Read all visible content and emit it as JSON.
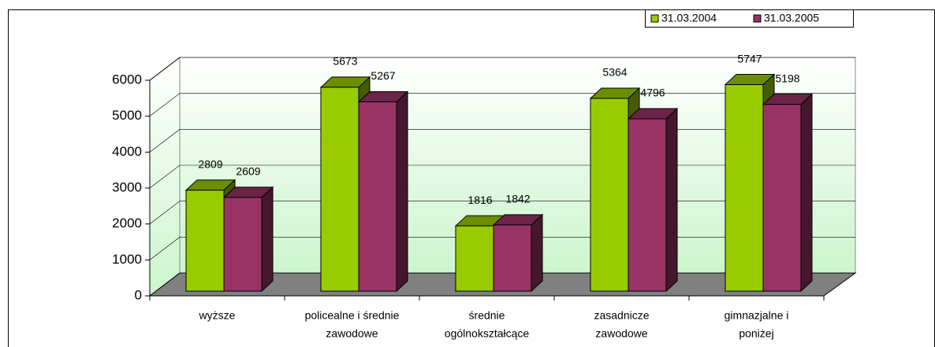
{
  "chart_data": {
    "type": "bar3d",
    "categories": [
      [
        "wyższe"
      ],
      [
        "policealne i średnie",
        "zawodowe"
      ],
      [
        "średnie",
        "ogólnokształcące"
      ],
      [
        "zasadnicze",
        "zawodowe"
      ],
      [
        "gimnazjalne i",
        "poniżej"
      ]
    ],
    "series": [
      {
        "name": "31.03.2004",
        "color": "#99cc00",
        "values": [
          2809,
          5673,
          1816,
          5364,
          5747
        ]
      },
      {
        "name": "31.03.2005",
        "color": "#993366",
        "values": [
          2609,
          5267,
          1842,
          4796,
          5198
        ]
      }
    ],
    "ylim": [
      0,
      6000
    ],
    "yticks": [
      0,
      1000,
      2000,
      3000,
      4000,
      5000,
      6000
    ],
    "grid": true,
    "legend": "top-right"
  }
}
